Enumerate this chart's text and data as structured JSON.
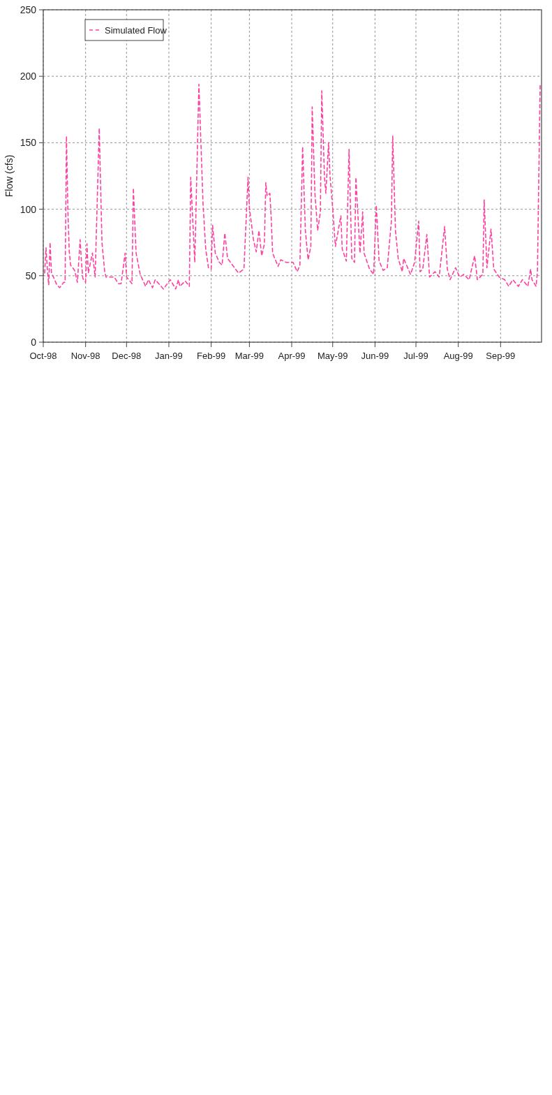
{
  "chart_data": {
    "type": "line",
    "xlabel": null,
    "ylabel": "Flow (cfs)",
    "xlim": [
      "1998-10-01",
      "1999-10-01"
    ],
    "xticks": [
      {
        "value": "1998-10-01",
        "label": "Oct-98"
      },
      {
        "value": "1998-11-01",
        "label": "Nov-98"
      },
      {
        "value": "1998-12-01",
        "label": "Dec-98"
      },
      {
        "value": "1999-01-01",
        "label": "Jan-99"
      },
      {
        "value": "1999-02-01",
        "label": "Feb-99"
      },
      {
        "value": "1999-03-01",
        "label": "Mar-99"
      },
      {
        "value": "1999-04-01",
        "label": "Apr-99"
      },
      {
        "value": "1999-05-01",
        "label": "May-99"
      },
      {
        "value": "1999-06-01",
        "label": "Jun-99"
      },
      {
        "value": "1999-07-01",
        "label": "Jul-99"
      },
      {
        "value": "1999-08-01",
        "label": "Aug-99"
      },
      {
        "value": "1999-09-01",
        "label": "Sep-99"
      }
    ],
    "ylim": [
      0,
      250
    ],
    "yticks": [
      0,
      50,
      100,
      150,
      200,
      250
    ],
    "grid": true,
    "legend": "top left",
    "line_style": "dashed",
    "marker": "none",
    "x": [
      "1998-10-02",
      "1998-10-03",
      "1998-10-04",
      "1998-10-05",
      "1998-10-06",
      "1998-10-07",
      "1998-10-08",
      "1998-10-11",
      "1998-10-13",
      "1998-10-16",
      "1998-10-17",
      "1998-10-18",
      "1998-10-19",
      "1998-10-20",
      "1998-10-21",
      "1998-10-24",
      "1998-10-26",
      "1998-10-28",
      "1998-10-29",
      "1998-10-30",
      "1998-11-01",
      "1998-11-02",
      "1998-11-03",
      "1998-11-06",
      "1998-11-08",
      "1998-11-11",
      "1998-11-13",
      "1998-11-15",
      "1998-11-16",
      "1998-11-22",
      "1998-11-25",
      "1998-11-27",
      "1998-11-30",
      "1998-12-01",
      "1998-12-05",
      "1998-12-06",
      "1998-12-08",
      "1998-12-11",
      "1998-12-15",
      "1998-12-17",
      "1998-12-20",
      "1998-12-22",
      "1998-12-28",
      "1999-01-02",
      "1999-01-06",
      "1999-01-08",
      "1999-01-09",
      "1999-01-13",
      "1999-01-16",
      "1999-01-17",
      "1999-01-20",
      "1999-01-23",
      "1999-01-26",
      "1999-01-28",
      "1999-01-30",
      "1999-02-01",
      "1999-02-02",
      "1999-02-04",
      "1999-02-07",
      "1999-02-09",
      "1999-02-11",
      "1999-02-13",
      "1999-02-21",
      "1999-02-25",
      "1999-02-28",
      "1999-03-01",
      "1999-03-04",
      "1999-03-06",
      "1999-03-08",
      "1999-03-10",
      "1999-03-12",
      "1999-03-13",
      "1999-03-14",
      "1999-03-16",
      "1999-03-17",
      "1999-03-18",
      "1999-03-22",
      "1999-03-24",
      "1999-03-28",
      "1999-04-02",
      "1999-04-05",
      "1999-04-07",
      "1999-04-09",
      "1999-04-11",
      "1999-04-13",
      "1999-04-15",
      "1999-04-16",
      "1999-04-18",
      "1999-04-20",
      "1999-04-22",
      "1999-04-23",
      "1999-04-25",
      "1999-04-26",
      "1999-04-28",
      "1999-04-29",
      "1999-05-01",
      "1999-05-03",
      "1999-05-07",
      "1999-05-08",
      "1999-05-11",
      "1999-05-13",
      "1999-05-15",
      "1999-05-17",
      "1999-05-18",
      "1999-05-21",
      "1999-05-23",
      "1999-05-24",
      "1999-05-28",
      "1999-05-31",
      "1999-06-02",
      "1999-06-04",
      "1999-06-07",
      "1999-06-10",
      "1999-06-13",
      "1999-06-14",
      "1999-06-16",
      "1999-06-18",
      "1999-06-21",
      "1999-06-22",
      "1999-06-27",
      "1999-06-30",
      "1999-07-03",
      "1999-07-04",
      "1999-07-06",
      "1999-07-09",
      "1999-07-11",
      "1999-07-15",
      "1999-07-18",
      "1999-07-22",
      "1999-07-24",
      "1999-07-26",
      "1999-07-30",
      "1999-08-02",
      "1999-08-05",
      "1999-08-09",
      "1999-08-13",
      "1999-08-15",
      "1999-08-19",
      "1999-08-20",
      "1999-08-22",
      "1999-08-25",
      "1999-08-27",
      "1999-08-31",
      "1999-09-04",
      "1999-09-07",
      "1999-09-10",
      "1999-09-14",
      "1999-09-17",
      "1999-09-21",
      "1999-09-23",
      "1999-09-24",
      "1999-09-27",
      "1999-09-28",
      "1999-09-30"
    ],
    "series": [
      {
        "name": "Simulated Flow",
        "color": "#ff3fa0",
        "values": [
          52,
          71,
          55,
          43,
          75,
          52,
          50,
          43,
          41,
          45,
          45,
          155,
          100,
          69,
          58,
          54,
          45,
          77,
          60,
          48,
          45,
          74,
          52,
          67,
          49,
          161,
          75,
          53,
          49,
          49,
          44,
          44,
          67,
          49,
          44,
          116,
          67,
          51,
          42,
          47,
          41,
          47,
          40,
          47,
          40,
          47,
          42,
          46,
          42,
          124,
          60,
          194,
          105,
          70,
          56,
          55,
          88,
          67,
          60,
          58,
          82,
          63,
          52,
          55,
          124,
          101,
          77,
          68,
          84,
          65,
          74,
          120,
          110,
          112,
          93,
          67,
          57,
          62,
          60,
          60,
          53,
          58,
          147,
          84,
          62,
          72,
          177,
          112,
          84,
          98,
          189,
          124,
          112,
          150,
          126,
          101,
          72,
          95,
          70,
          61,
          145,
          63,
          60,
          124,
          67,
          98,
          67,
          55,
          51,
          103,
          61,
          54,
          56,
          91,
          155,
          84,
          63,
          53,
          63,
          51,
          60,
          91,
          53,
          55,
          81,
          49,
          53,
          49,
          87,
          55,
          47,
          56,
          49,
          51,
          47,
          65,
          47,
          51,
          107,
          56,
          85,
          55,
          49,
          47,
          42,
          47,
          42,
          47,
          42,
          55,
          47,
          42,
          53,
          194
        ]
      }
    ]
  }
}
